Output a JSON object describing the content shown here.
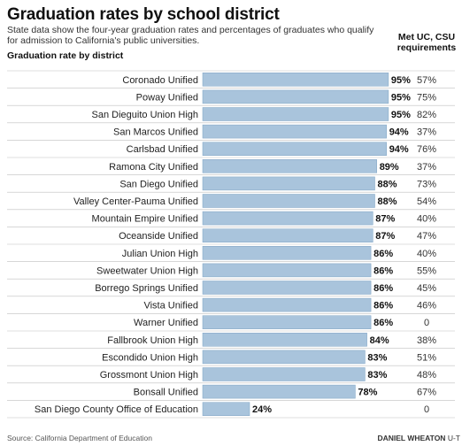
{
  "header": {
    "title": "Graduation rates by school district",
    "subtitle": "State data show the four-year graduation rates and percentages of graduates who qualify for admission to California's public universities.",
    "rate_column_label": "Graduation rate by district",
    "met_column_label": "Met UC, CSU requirements"
  },
  "colors": {
    "bar": "#a9c4dc",
    "bar_edge": "#7fa3c4",
    "divider": "#bfbfbf"
  },
  "chart_data": {
    "type": "bar",
    "orientation": "horizontal",
    "title": "Graduation rates by school district",
    "xlim": [
      0,
      100
    ],
    "categories": [
      "Coronado Unified",
      "Poway Unified",
      "San Dieguito Union High",
      "San Marcos Unified",
      "Carlsbad Unified",
      "Ramona City Unified",
      "San Diego Unified",
      "Valley Center-Pauma Unified",
      "Mountain Empire Unified",
      "Oceanside Unified",
      "Julian Union High",
      "Sweetwater Union High",
      "Borrego Springs Unified",
      "Vista Unified",
      "Warner Unified",
      "Fallbrook Union High",
      "Escondido Union High",
      "Grossmont Union High",
      "Bonsall Unified",
      "San Diego County Office of Education"
    ],
    "series": [
      {
        "name": "Graduation rate by district",
        "values": [
          95,
          95,
          95,
          94,
          94,
          89,
          88,
          88,
          87,
          87,
          86,
          86,
          86,
          86,
          86,
          84,
          83,
          83,
          78,
          24
        ],
        "labels": [
          "95%",
          "95%",
          "95%",
          "94%",
          "94%",
          "89%",
          "88%",
          "88%",
          "87%",
          "87%",
          "86%",
          "86%",
          "86%",
          "86%",
          "86%",
          "84%",
          "83%",
          "83%",
          "78%",
          "24%"
        ]
      },
      {
        "name": "Met UC, CSU requirements",
        "values": [
          57,
          75,
          82,
          37,
          76,
          37,
          73,
          54,
          40,
          47,
          40,
          55,
          45,
          46,
          0,
          38,
          51,
          48,
          67,
          0
        ],
        "labels": [
          "57%",
          "75%",
          "82%",
          "37%",
          "76%",
          "37%",
          "73%",
          "54%",
          "40%",
          "47%",
          "40%",
          "55%",
          "45%",
          "46%",
          "0",
          "38%",
          "51%",
          "48%",
          "67%",
          "0"
        ]
      }
    ]
  },
  "footer": {
    "source": "Source: California Department of Education",
    "credit_name": "DANIEL WHEATON",
    "credit_org": "U-T"
  }
}
